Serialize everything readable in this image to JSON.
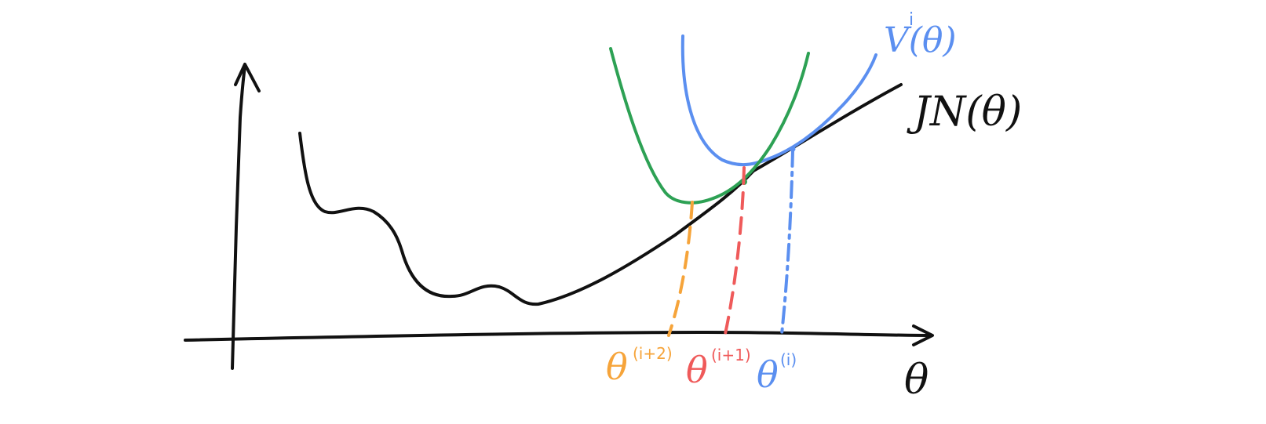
{
  "colors": {
    "ink": "#111111",
    "orange": "#f6a43a",
    "red": "#ef5a5a",
    "blue": "#5b8ff0",
    "green": "#2da154"
  },
  "labels": {
    "x_axis": "θ",
    "objective": "JN(θ)",
    "surrogate": "V(θ)",
    "surrogate_sup": "i",
    "theta_i": "θ",
    "theta_i_sup": "(i)",
    "theta_i1": "θ",
    "theta_i1_sup": "(i+1)",
    "theta_i2": "θ",
    "theta_i2_sup": "(i+2)"
  }
}
